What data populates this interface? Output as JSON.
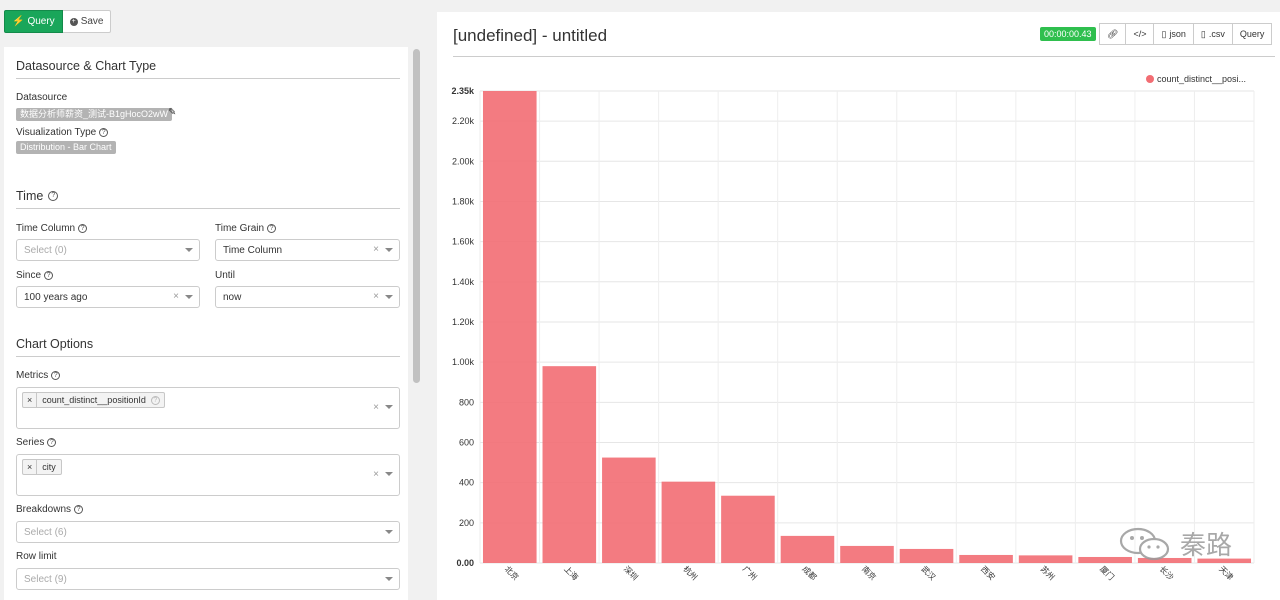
{
  "toolbar": {
    "query_label": "Query",
    "save_label": "Save"
  },
  "left": {
    "datasource_section": "Datasource & Chart Type",
    "datasource_label": "Datasource",
    "datasource_value": "数据分析师薪资_测试-B1gHocO2wW",
    "viz_label": "Visualization Type",
    "viz_value": "Distribution - Bar Chart",
    "time_section": "Time",
    "time_column_label": "Time Column",
    "time_column_placeholder": "Select (0)",
    "time_grain_label": "Time Grain",
    "time_grain_value": "Time Column",
    "since_label": "Since",
    "since_value": "100 years ago",
    "until_label": "Until",
    "until_value": "now",
    "chart_options_section": "Chart Options",
    "metrics_label": "Metrics",
    "metrics_value": "count_distinct__positionId",
    "series_label": "Series",
    "series_value": "city",
    "breakdowns_label": "Breakdowns",
    "breakdowns_placeholder": "Select (6)",
    "row_limit_label": "Row limit",
    "row_limit_placeholder": "Select (9)"
  },
  "right": {
    "title": "[undefined] - untitled",
    "timer": "00:00:00.43",
    "btn_json": "json",
    "btn_csv": ".csv",
    "btn_query": "Query"
  },
  "chart_data": {
    "type": "bar",
    "categories": [
      "北京",
      "上海",
      "深圳",
      "杭州",
      "广州",
      "成都",
      "南京",
      "武汉",
      "西安",
      "苏州",
      "厦门",
      "长沙",
      "天津"
    ],
    "series": [
      {
        "name": "count_distinct__posi...",
        "values": [
          2350,
          980,
          525,
          405,
          335,
          135,
          85,
          70,
          40,
          38,
          30,
          25,
          22
        ]
      }
    ],
    "y_ticks": [
      "0.00",
      "200",
      "400",
      "600",
      "800",
      "1.00k",
      "1.20k",
      "1.40k",
      "1.60k",
      "1.80k",
      "2.00k",
      "2.20k",
      "2.35k"
    ],
    "ylim": [
      0,
      2350
    ],
    "bar_color": "#f26d73",
    "grid": true,
    "legend": "top-right"
  },
  "watermark": "秦路"
}
